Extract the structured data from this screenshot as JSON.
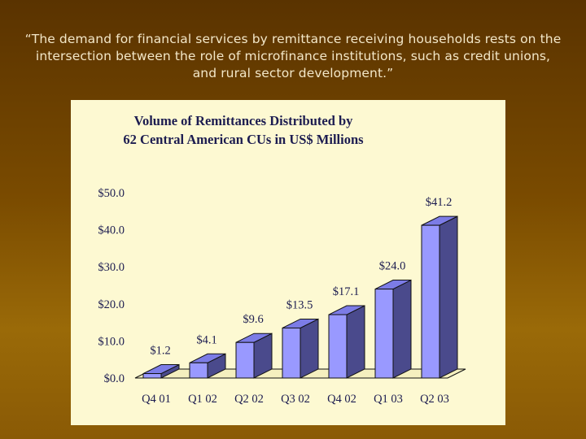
{
  "quote": "“The demand for financial services by remittance receiving households rests on the intersection between the role of microfinance institutions, such as credit unions, and rural sector development.”",
  "chart_data": {
    "type": "bar",
    "title_line1": "Volume of Remittances Distributed by",
    "title_line2": "62 Central American CUs in US$ Millions",
    "categories": [
      "Q4 01",
      "Q1 02",
      "Q2 02",
      "Q3 02",
      "Q4 02",
      "Q1 03",
      "Q2 03"
    ],
    "values": [
      1.2,
      4.1,
      9.6,
      13.5,
      17.1,
      24.0,
      41.2
    ],
    "data_labels": [
      "$1.2",
      "$4.1",
      "$9.6",
      "$13.5",
      "$17.1",
      "$24.0",
      "$41.2"
    ],
    "y_ticks": [
      0,
      10,
      20,
      30,
      40,
      50
    ],
    "y_tick_labels": [
      "$0.0",
      "$10.0",
      "$20.0",
      "$30.0",
      "$40.0",
      "$50.0"
    ],
    "ylim": [
      0,
      50
    ],
    "grid": false,
    "bar_front_color": "#9999ff",
    "bar_top_color": "#7c7ce6",
    "bar_side_color": "#4a4a8c"
  }
}
